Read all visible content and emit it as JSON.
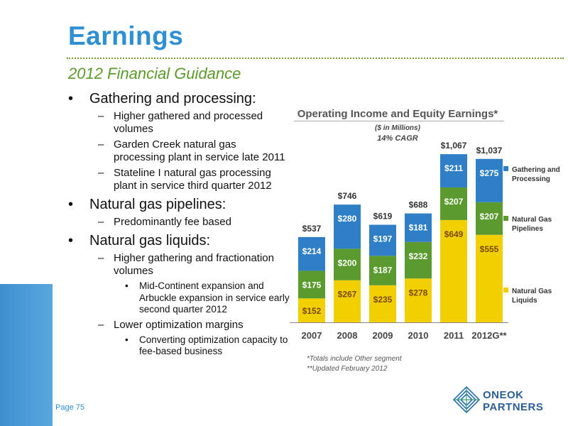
{
  "header": {
    "title": "Earnings",
    "subtitle": "2012 Financial Guidance"
  },
  "bullets": [
    {
      "text": "Gathering and processing:",
      "subs": [
        {
          "text": "Higher gathered and processed volumes",
          "subs": []
        },
        {
          "text": "Garden Creek natural gas processing plant in service late 2011",
          "subs": []
        },
        {
          "text": "Stateline I natural gas processing plant in service third quarter 2012",
          "subs": []
        }
      ]
    },
    {
      "text": "Natural gas pipelines:",
      "subs": [
        {
          "text": "Predominantly fee based",
          "subs": []
        }
      ]
    },
    {
      "text": "Natural gas liquids:",
      "subs": [
        {
          "text": "Higher gathering and fractionation volumes",
          "subs": [
            "Mid-Continent expansion and Arbuckle expansion in service early second quarter 2012"
          ]
        },
        {
          "text": "Lower optimization margins",
          "subs": [
            "Converting optimization capacity to fee-based business"
          ]
        }
      ]
    }
  ],
  "footer": {
    "page": "Page 75",
    "logo_line1": "ONEOK",
    "logo_line2": "PARTNERS"
  },
  "chart_data": {
    "type": "bar",
    "stacked": true,
    "title": "Operating Income and Equity Earnings*",
    "units": "($ in Millions)",
    "annotation": "14% CAGR",
    "categories": [
      "2007",
      "2008",
      "2009",
      "2010",
      "2011",
      "2012G**"
    ],
    "series": [
      {
        "name": "Natural Gas Liquids",
        "values": [
          152,
          267,
          235,
          278,
          649,
          555
        ],
        "labels": [
          "$152",
          "$267",
          "$235",
          "$278",
          "$649",
          "$555"
        ],
        "color": "#f2cf00"
      },
      {
        "name": "Natural Gas Pipelines",
        "values": [
          175,
          200,
          187,
          232,
          207,
          207
        ],
        "labels": [
          "$175",
          "$200",
          "$187",
          "$232",
          "$207",
          "$207"
        ],
        "color": "#5a9a2e"
      },
      {
        "name": "Gathering and Processing",
        "values": [
          214,
          280,
          197,
          181,
          211,
          275
        ],
        "labels": [
          "$214",
          "$280",
          "$197",
          "$181",
          "$211",
          "$275"
        ],
        "color": "#2f7fc6"
      }
    ],
    "totals": [
      537,
      746,
      619,
      688,
      1067,
      1037
    ],
    "total_labels": [
      "$537",
      "$746",
      "$619",
      "$688",
      "$1,067",
      "$1,037"
    ],
    "legend_labels": [
      "Gathering and Processing",
      "Natural Gas Pipelines",
      "Natural Gas Liquids"
    ],
    "legend_colors": [
      "#2f7fc6",
      "#5a9a2e",
      "#f2cf00"
    ],
    "legend_position": "right",
    "ylim": [
      0,
      1100
    ],
    "grid": false,
    "footnotes": [
      "*Totals include Other segment",
      "**Updated February 2012"
    ]
  }
}
